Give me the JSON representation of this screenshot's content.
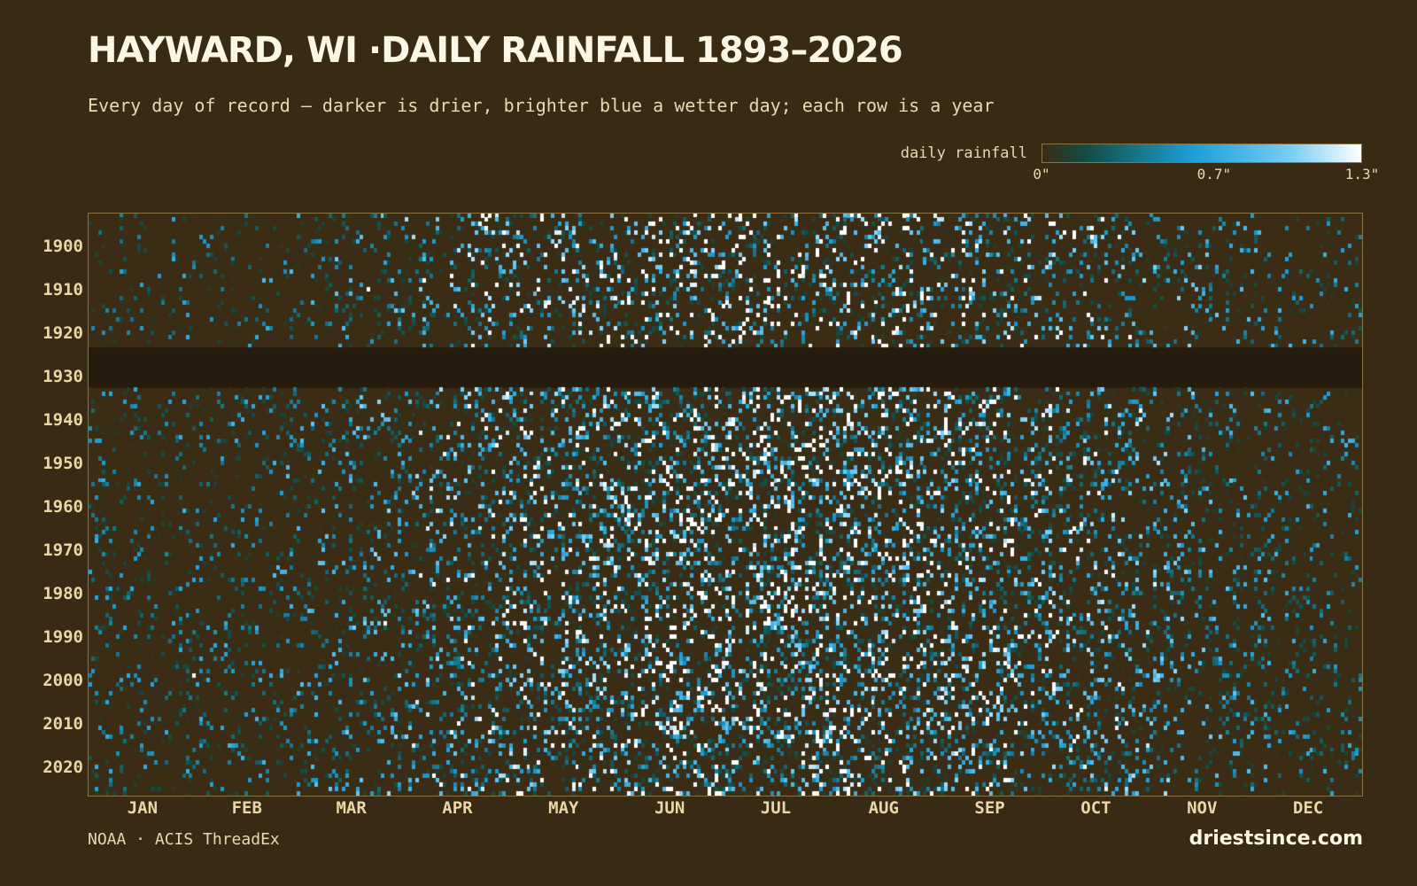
{
  "header": {
    "title": "HAYWARD, WI ·DAILY RAINFALL 1893–2026",
    "subtitle": "Every day of record — darker is drier, brighter blue a wetter day; each row is a year"
  },
  "footer": {
    "source": "NOAA · ACIS ThreadEx",
    "site": "driestsince.com"
  },
  "colors": {
    "background": "#382a14",
    "dry": "#3a2c15",
    "mid": "#1ea0d8",
    "wet": "#ffffff",
    "missing": "#261c0e"
  },
  "chart_data": {
    "type": "heatmap",
    "title": "HAYWARD, WI ·DAILY RAINFALL 1893–2026",
    "x_axis": {
      "categories": [
        "JAN",
        "FEB",
        "MAR",
        "APR",
        "MAY",
        "JUN",
        "JUL",
        "AUG",
        "SEP",
        "OCT",
        "NOV",
        "DEC"
      ],
      "unit": "day of year",
      "range": [
        1,
        366
      ]
    },
    "y_axis": {
      "tick_labels": [
        "1900",
        "1910",
        "1920",
        "1930",
        "1940",
        "1950",
        "1960",
        "1970",
        "1980",
        "1990",
        "2000",
        "2010",
        "2020"
      ],
      "range": [
        1893,
        2026
      ]
    },
    "color_scale": {
      "label": "daily rainfall",
      "min": 0,
      "max": 1.3,
      "unit": "inches",
      "ticks": [
        {
          "value": 0,
          "label": "0\""
        },
        {
          "value": 0.7,
          "label": "0.7\""
        },
        {
          "value": 1.3,
          "label": "1.3\""
        }
      ]
    },
    "missing_years": [
      1924,
      1925,
      1926,
      1927,
      1928,
      1929,
      1930,
      1931,
      1932
    ],
    "grid": false,
    "legend_placement": "top-right"
  }
}
